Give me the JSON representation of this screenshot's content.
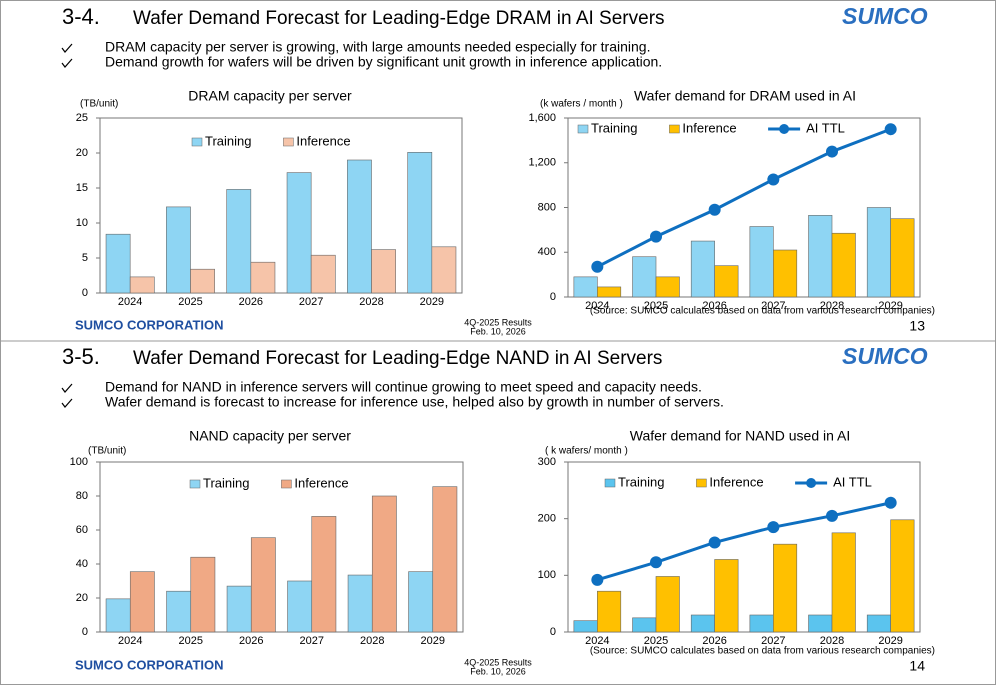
{
  "slides": [
    {
      "number": "3-4.",
      "title": "Wafer Demand Forecast for Leading-Edge DRAM in AI Servers",
      "logo": "SUMCO",
      "bullets": [
        "DRAM capacity per server is growing, with large amounts needed especially for training.",
        "Demand growth for wafers will be driven by significant unit growth in inference application."
      ],
      "charts": [
        {
          "type": "bar",
          "title": "DRAM capacity per server",
          "y_label": "(TB/unit)",
          "categories": [
            "2024",
            "2025",
            "2026",
            "2027",
            "2028",
            "2029"
          ],
          "series": [
            {
              "name": "Training",
              "color": "#8ed5f3",
              "values": [
                8.4,
                12.3,
                14.8,
                17.2,
                19.0,
                20.1
              ]
            },
            {
              "name": "Inference",
              "color": "#f6c4a9",
              "values": [
                2.3,
                3.4,
                4.4,
                5.4,
                6.2,
                6.6
              ]
            }
          ],
          "ylim": [
            0,
            25
          ],
          "yticks": [
            0,
            5,
            10,
            15,
            20,
            25
          ]
        },
        {
          "type": "bar",
          "title": "Wafer demand for DRAM used in AI",
          "y_label": "(k wafers / month )",
          "categories": [
            "2024",
            "2025",
            "2026",
            "2027",
            "2028",
            "2029"
          ],
          "series": [
            {
              "name": "Training",
              "color": "#8ed5f3",
              "values": [
                180,
                360,
                500,
                630,
                730,
                800
              ]
            },
            {
              "name": "Inference",
              "color": "#ffc000",
              "values": [
                90,
                180,
                280,
                420,
                570,
                700
              ]
            },
            {
              "name": "AI TTL",
              "color": "#0e6fc0",
              "type": "line",
              "values": [
                270,
                540,
                780,
                1050,
                1300,
                1500
              ]
            }
          ],
          "ylim": [
            0,
            1600
          ],
          "yticks": [
            0,
            400,
            800,
            {
              "value": 1200,
              "label": "1,200"
            },
            {
              "value": 1600,
              "label": "1,600"
            }
          ]
        }
      ],
      "source": "(Source: SUMCO calculates based on data from various research companies)",
      "footer": {
        "company": "SUMCO CORPORATION",
        "results": "4Q-2025 Results",
        "date": "Feb. 10, 2026",
        "page": "13"
      }
    },
    {
      "number": "3-5.",
      "title": "Wafer Demand Forecast for Leading-Edge NAND in AI Servers",
      "logo": "SUMCO",
      "bullets": [
        "Demand for NAND in inference servers will continue growing to meet speed and capacity needs.",
        "Wafer demand is forecast to increase for inference use, helped also by growth in number of servers."
      ],
      "charts": [
        {
          "type": "bar",
          "title": "NAND capacity per server",
          "y_label": "(TB/unit)",
          "categories": [
            "2024",
            "2025",
            "2026",
            "2027",
            "2028",
            "2029"
          ],
          "series": [
            {
              "name": "Training",
              "color": "#8ed5f3",
              "values": [
                19.5,
                24,
                27,
                30,
                33.5,
                35.5
              ]
            },
            {
              "name": "Inference",
              "color": "#f0a985",
              "values": [
                35.5,
                44,
                55.5,
                68,
                80,
                85.5
              ]
            }
          ],
          "ylim": [
            0,
            100
          ],
          "yticks": [
            0,
            20,
            40,
            60,
            80,
            100
          ]
        },
        {
          "type": "bar",
          "title": "Wafer demand for NAND used in AI",
          "y_label": "( k wafers/ month )",
          "categories": [
            "2024",
            "2025",
            "2026",
            "2027",
            "2028",
            "2029"
          ],
          "series": [
            {
              "name": "Training",
              "color": "#5bc4ee",
              "values": [
                20,
                25,
                30,
                30,
                30,
                30
              ]
            },
            {
              "name": "Inference",
              "color": "#ffc000",
              "values": [
                72,
                98,
                128,
                155,
                175,
                198
              ]
            },
            {
              "name": "AI TTL",
              "color": "#0e6fc0",
              "type": "line",
              "values": [
                92,
                123,
                158,
                185,
                205,
                228
              ]
            }
          ],
          "ylim": [
            0,
            300
          ],
          "yticks": [
            0,
            100,
            200,
            300
          ]
        }
      ],
      "source": "(Source: SUMCO calculates based on data from various research companies)",
      "footer": {
        "company": "SUMCO CORPORATION",
        "results": "4Q-2025 Results",
        "date": "Feb. 10, 2026",
        "page": "14"
      }
    }
  ]
}
